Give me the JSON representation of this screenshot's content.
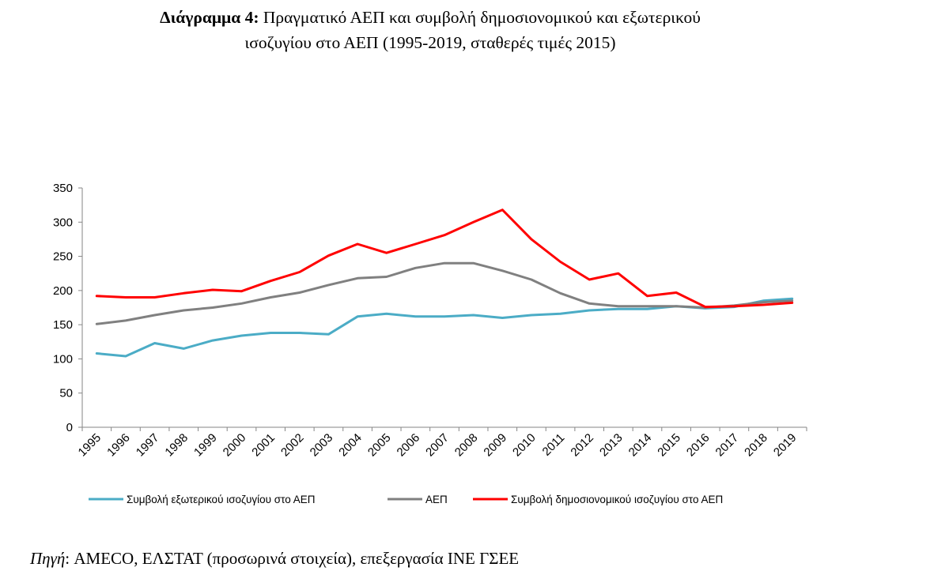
{
  "title": {
    "prefix": "Διάγραμμα 4:",
    "line1": "Πραγματικό ΑΕΠ και συμβολή δημοσιονομικού και εξωτερικού",
    "line2": "ισοζυγίου στο ΑΕΠ (1995-2019, σταθερές τιμές 2015)"
  },
  "source": {
    "label": "Πηγή",
    "text": ": AMECO, ΕΛΣΤΑΤ (προσωρινά στοιχεία), επεξεργασία ΙΝΕ ΓΣΕΕ"
  },
  "chart_data": {
    "type": "line",
    "x": [
      "1995",
      "1996",
      "1997",
      "1998",
      "1999",
      "2000",
      "2001",
      "2002",
      "2003",
      "2004",
      "2005",
      "2006",
      "2007",
      "2008",
      "2009",
      "2010",
      "2011",
      "2012",
      "2013",
      "2014",
      "2015",
      "2016",
      "2017",
      "2018",
      "2019"
    ],
    "ylim": [
      0,
      350
    ],
    "yticks": [
      0,
      50,
      100,
      150,
      200,
      250,
      300,
      350
    ],
    "grid": false,
    "legend_position": "bottom",
    "series": [
      {
        "name": "Συμβολή εξωτερικού ισοζυγίου στο ΑΕΠ",
        "color": "#4bacc6",
        "values": [
          108,
          104,
          123,
          115,
          127,
          134,
          138,
          138,
          136,
          162,
          166,
          162,
          162,
          164,
          160,
          164,
          166,
          171,
          173,
          173,
          177,
          174,
          176,
          185,
          188
        ]
      },
      {
        "name": "ΑΕΠ",
        "color": "#808080",
        "values": [
          151,
          156,
          164,
          171,
          175,
          181,
          190,
          197,
          208,
          218,
          220,
          233,
          240,
          240,
          229,
          216,
          196,
          181,
          177,
          177,
          177,
          175,
          178,
          183,
          185
        ]
      },
      {
        "name": "Συμβολή δημοσιονομικού ισοζυγίου στο ΑΕΠ",
        "color": "#ff0000",
        "values": [
          192,
          190,
          190,
          196,
          201,
          199,
          214,
          227,
          251,
          268,
          255,
          268,
          281,
          300,
          318,
          275,
          242,
          216,
          225,
          192,
          197,
          176,
          177,
          179,
          182
        ]
      }
    ]
  }
}
